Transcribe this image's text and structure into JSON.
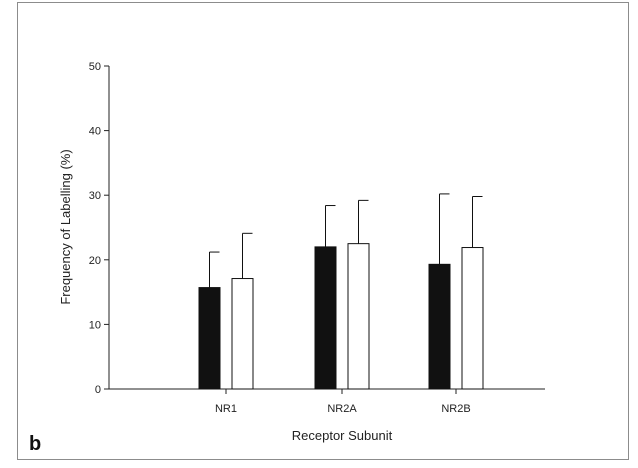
{
  "panel_label": "b",
  "chart_data": {
    "type": "bar",
    "title": "",
    "xlabel": "Receptor Subunit",
    "ylabel": "Frequency of Labelling (%)",
    "ylim": [
      0,
      50
    ],
    "yticks": [
      0,
      10,
      20,
      30,
      40,
      50
    ],
    "grid": false,
    "legend": "none",
    "categories": [
      "NR1",
      "NR2A",
      "NR2B"
    ],
    "series": [
      {
        "color": "#111111",
        "values": [
          15.7,
          22.0,
          19.3
        ],
        "error_upper": [
          21.2,
          28.4,
          30.2
        ]
      },
      {
        "color": "#ffffff",
        "values": [
          17.1,
          22.5,
          21.9
        ],
        "error_upper": [
          24.1,
          29.2,
          29.8
        ]
      }
    ]
  }
}
